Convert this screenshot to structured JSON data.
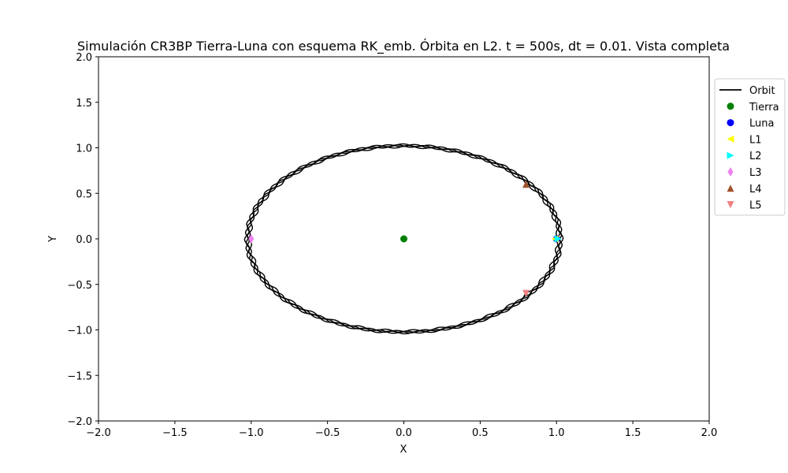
{
  "chart_data": {
    "type": "line",
    "title": "Simulación CR3BP Tierra-Luna con esquema RK_emb. Órbita en L2. t = 500s, dt = 0.01. Vista completa",
    "xlabel": "X",
    "ylabel": "Y",
    "xlim": [
      -2.0,
      2.0
    ],
    "ylim": [
      -2.0,
      2.0
    ],
    "xticks": [
      "−2.0",
      "−1.5",
      "−1.0",
      "−0.5",
      "0.0",
      "0.5",
      "1.0",
      "1.5",
      "2.0"
    ],
    "yticks": [
      "−2.0",
      "−1.5",
      "−1.0",
      "−0.5",
      "0.0",
      "0.5",
      "1.0",
      "1.5",
      "2.0"
    ],
    "grid": false,
    "legend_position": "outside-right",
    "orbit": {
      "name": "Orbit",
      "color": "#000000",
      "shape": "near-circular loop of radius ~1.02 with small epicyclic wiggles",
      "radius": 1.02
    },
    "points": [
      {
        "name": "Tierra",
        "x": 0.0,
        "y": 0.0,
        "color": "#008000",
        "marker": "circle"
      },
      {
        "name": "Luna",
        "x": 1.0,
        "y": 0.0,
        "color": "#0000ff",
        "marker": "circle"
      },
      {
        "name": "L1",
        "x": 0.99,
        "y": 0.0,
        "color": "#ffff00",
        "marker": "triangle-left"
      },
      {
        "name": "L2",
        "x": 1.01,
        "y": 0.0,
        "color": "#00ffff",
        "marker": "triangle-right"
      },
      {
        "name": "L3",
        "x": -1.0,
        "y": 0.0,
        "color": "#ee82ee",
        "marker": "diamond"
      },
      {
        "name": "L4",
        "x": 0.8,
        "y": 0.6,
        "color": "#a0522d",
        "marker": "triangle-up"
      },
      {
        "name": "L5",
        "x": 0.8,
        "y": -0.6,
        "color": "#f08080",
        "marker": "triangle-down"
      }
    ]
  }
}
